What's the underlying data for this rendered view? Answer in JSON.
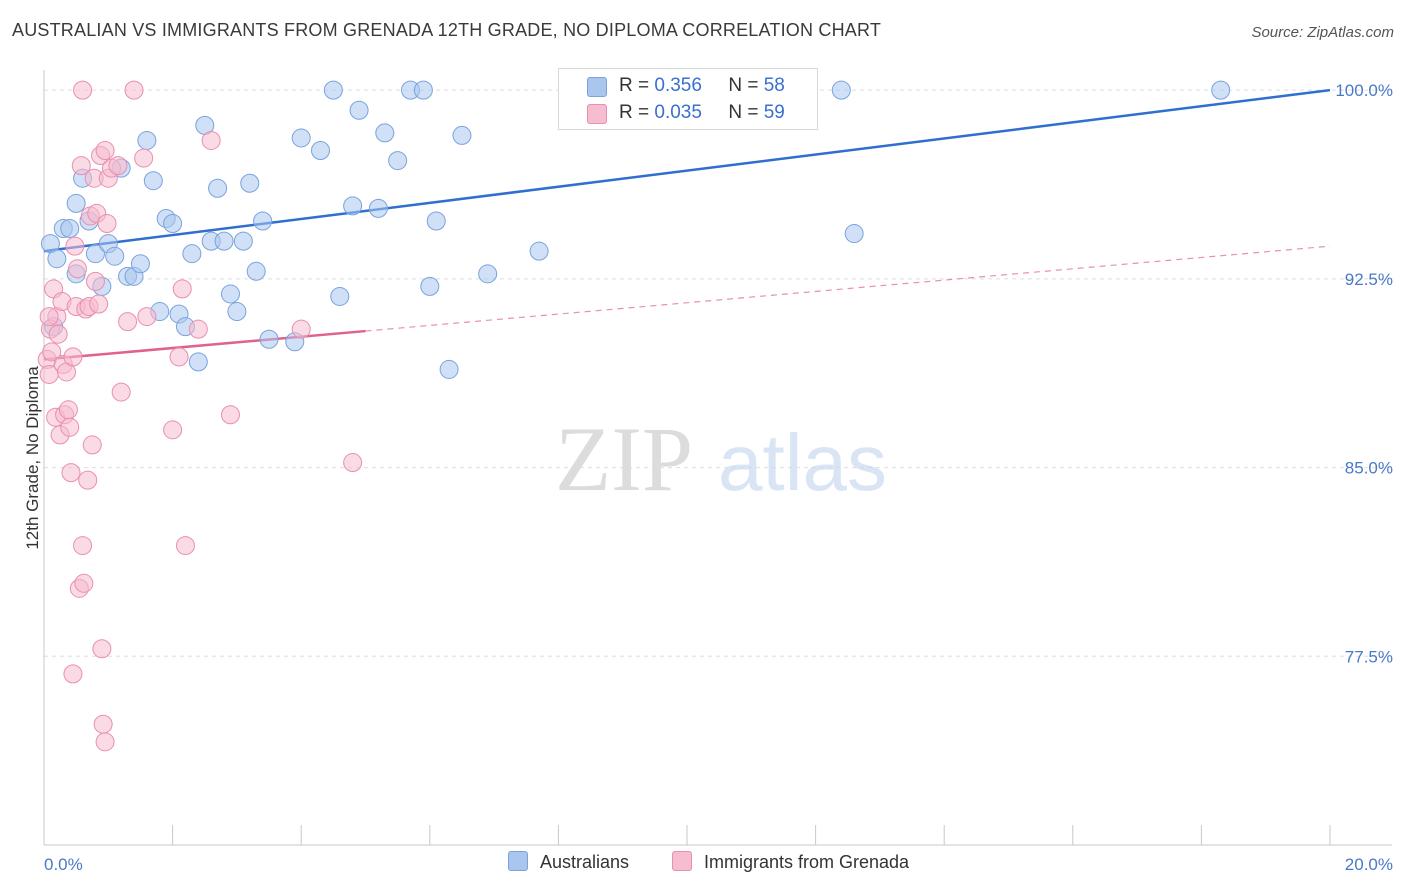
{
  "title": "AUSTRALIAN VS IMMIGRANTS FROM GRENADA 12TH GRADE, NO DIPLOMA CORRELATION CHART",
  "source": "Source: ZipAtlas.com",
  "watermark": {
    "zip": "ZIP",
    "atlas": "atlas"
  },
  "legend": {
    "rows": [
      {
        "r_label": "R =",
        "r_value": "0.356",
        "n_label": "N =",
        "n_value": "58",
        "color": "#a9c6ee",
        "border": "#7aa3dc"
      },
      {
        "r_label": "R =",
        "r_value": "0.035",
        "n_label": "N =",
        "n_value": "59",
        "color": "#f6bcd0",
        "border": "#e98fb0"
      }
    ]
  },
  "bottom_legend": [
    {
      "label": "Australians",
      "color": "#a9c6ee",
      "border": "#7aa3dc"
    },
    {
      "label": "Immigrants from Grenada",
      "color": "#f6bcd0",
      "border": "#e98fb0"
    }
  ],
  "chart_data": {
    "type": "scatter",
    "title": "AUSTRALIAN VS IMMIGRANTS FROM GRENADA 12TH GRADE, NO DIPLOMA CORRELATION CHART",
    "xlabel": "",
    "ylabel": "12th Grade, No Diploma",
    "xlim": [
      0.0,
      20.0
    ],
    "ylim": [
      70.0,
      100.8
    ],
    "x_tick_labels": [
      "0.0%",
      "20.0%"
    ],
    "y_ticks": [
      77.5,
      85.0,
      92.5,
      100.0
    ],
    "y_tick_labels": [
      "77.5%",
      "85.0%",
      "92.5%",
      "100.0%"
    ],
    "grid": true,
    "series": [
      {
        "name": "Australians",
        "color": "#a9c6ee",
        "stroke": "#7aa3dc",
        "line_color": "#2f6fd0",
        "trend": {
          "x0": 0.0,
          "y0": 93.6,
          "x1": 20.0,
          "y1": 100.0,
          "dashed_from": null
        },
        "points": [
          [
            0.1,
            93.9
          ],
          [
            0.2,
            93.3
          ],
          [
            0.3,
            94.5
          ],
          [
            0.4,
            94.5
          ],
          [
            0.5,
            95.5
          ],
          [
            0.5,
            92.7
          ],
          [
            0.6,
            96.5
          ],
          [
            0.7,
            94.8
          ],
          [
            0.8,
            93.5
          ],
          [
            0.9,
            92.2
          ],
          [
            1.0,
            93.9
          ],
          [
            1.1,
            93.4
          ],
          [
            1.2,
            96.9
          ],
          [
            1.3,
            92.6
          ],
          [
            1.4,
            92.6
          ],
          [
            1.5,
            93.1
          ],
          [
            1.6,
            98.0
          ],
          [
            1.7,
            96.4
          ],
          [
            1.8,
            91.2
          ],
          [
            1.9,
            94.9
          ],
          [
            2.0,
            94.7
          ],
          [
            2.1,
            91.1
          ],
          [
            2.2,
            90.6
          ],
          [
            2.3,
            93.5
          ],
          [
            2.4,
            89.2
          ],
          [
            2.5,
            98.6
          ],
          [
            2.6,
            94.0
          ],
          [
            2.7,
            96.1
          ],
          [
            2.8,
            94.0
          ],
          [
            2.9,
            91.9
          ],
          [
            3.0,
            91.2
          ],
          [
            3.1,
            94.0
          ],
          [
            3.2,
            96.3
          ],
          [
            3.3,
            92.8
          ],
          [
            3.4,
            94.8
          ],
          [
            3.5,
            90.1
          ],
          [
            3.9,
            90.0
          ],
          [
            4.0,
            98.1
          ],
          [
            4.3,
            97.6
          ],
          [
            4.5,
            100.0
          ],
          [
            4.6,
            91.8
          ],
          [
            4.8,
            95.4
          ],
          [
            4.9,
            99.2
          ],
          [
            5.2,
            95.3
          ],
          [
            5.3,
            98.3
          ],
          [
            5.5,
            97.2
          ],
          [
            5.7,
            100.0
          ],
          [
            5.9,
            100.0
          ],
          [
            6.0,
            92.2
          ],
          [
            6.1,
            94.8
          ],
          [
            6.3,
            88.9
          ],
          [
            6.5,
            98.2
          ],
          [
            6.9,
            92.7
          ],
          [
            7.7,
            93.6
          ],
          [
            12.4,
            100.0
          ],
          [
            12.6,
            94.3
          ],
          [
            18.3,
            100.0
          ],
          [
            0.15,
            90.6
          ]
        ]
      },
      {
        "name": "Immigrants from Grenada",
        "color": "#f6bcd0",
        "stroke": "#e98fb0",
        "line_color": "#e0608e",
        "trend": {
          "x0": 0.0,
          "y0": 89.3,
          "x1": 20.0,
          "y1": 93.8,
          "dashed_from": 5.0
        },
        "points": [
          [
            0.05,
            89.3
          ],
          [
            0.08,
            88.7
          ],
          [
            0.1,
            90.5
          ],
          [
            0.12,
            89.6
          ],
          [
            0.15,
            92.1
          ],
          [
            0.18,
            87.0
          ],
          [
            0.2,
            91.0
          ],
          [
            0.22,
            90.3
          ],
          [
            0.25,
            86.3
          ],
          [
            0.28,
            91.6
          ],
          [
            0.3,
            89.1
          ],
          [
            0.32,
            87.1
          ],
          [
            0.35,
            88.8
          ],
          [
            0.38,
            87.3
          ],
          [
            0.4,
            86.6
          ],
          [
            0.42,
            84.8
          ],
          [
            0.45,
            89.4
          ],
          [
            0.48,
            93.8
          ],
          [
            0.5,
            91.4
          ],
          [
            0.52,
            92.9
          ],
          [
            0.55,
            80.2
          ],
          [
            0.58,
            97.0
          ],
          [
            0.6,
            81.9
          ],
          [
            0.62,
            80.4
          ],
          [
            0.65,
            91.3
          ],
          [
            0.68,
            84.5
          ],
          [
            0.7,
            91.4
          ],
          [
            0.72,
            95.0
          ],
          [
            0.75,
            85.9
          ],
          [
            0.78,
            96.5
          ],
          [
            0.8,
            92.4
          ],
          [
            0.82,
            95.1
          ],
          [
            0.85,
            91.5
          ],
          [
            0.88,
            97.4
          ],
          [
            0.9,
            77.8
          ],
          [
            0.92,
            74.8
          ],
          [
            0.95,
            97.6
          ],
          [
            0.98,
            94.7
          ],
          [
            1.0,
            96.5
          ],
          [
            1.05,
            96.9
          ],
          [
            1.2,
            88.0
          ],
          [
            1.3,
            90.8
          ],
          [
            1.4,
            100.0
          ],
          [
            1.55,
            97.3
          ],
          [
            1.6,
            91.0
          ],
          [
            2.0,
            86.5
          ],
          [
            2.1,
            89.4
          ],
          [
            2.15,
            92.1
          ],
          [
            2.2,
            81.9
          ],
          [
            2.4,
            90.5
          ],
          [
            2.6,
            98.0
          ],
          [
            2.9,
            87.1
          ],
          [
            4.0,
            90.5
          ],
          [
            4.8,
            85.2
          ],
          [
            1.15,
            97.0
          ],
          [
            0.6,
            100.0
          ],
          [
            0.45,
            76.8
          ],
          [
            0.95,
            74.1
          ],
          [
            0.08,
            91.0
          ]
        ]
      }
    ]
  }
}
